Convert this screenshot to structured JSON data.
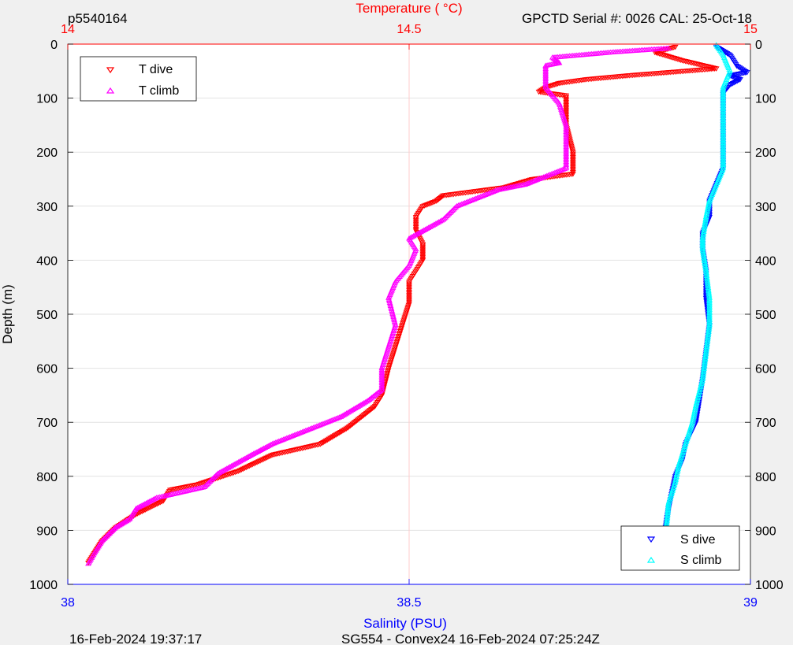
{
  "header": {
    "profile_id": "p5540164",
    "serial_info": "GPCTD Serial #: 0026 CAL: 25-Oct-18"
  },
  "footer": {
    "timestamp": "16-Feb-2024 19:37:17",
    "mission": "SG554 - Convex24 16-Feb-2024 07:25:24Z"
  },
  "colors": {
    "t_dive": "#ff0000",
    "t_climb": "#ff00ff",
    "s_dive": "#0000ff",
    "s_climb": "#00ffff",
    "top_axis": "#ff0000",
    "bottom_axis": "#0000ff",
    "background": "#f0f0f0",
    "plot_bg": "#ffffff"
  },
  "legends": [
    {
      "position": "top-left",
      "entries": [
        "T dive",
        "T climb"
      ]
    },
    {
      "position": "bottom-right",
      "entries": [
        "S dive",
        "S climb"
      ]
    }
  ],
  "chart_data": {
    "type": "scatter",
    "grid": true,
    "ylabel": "Depth (m)",
    "top_axis": {
      "label": "Temperature (    °C)",
      "range": [
        14,
        15
      ],
      "ticks": [
        "14",
        "14.5",
        "15"
      ]
    },
    "bottom_axis": {
      "label": "Salinity (PSU)",
      "range": [
        38,
        39
      ],
      "ticks": [
        "38",
        "38.5",
        "39"
      ]
    },
    "y_axis": {
      "range": [
        0,
        1000
      ],
      "reversed": true,
      "ticks": [
        "0",
        "100",
        "200",
        "300",
        "400",
        "500",
        "600",
        "700",
        "800",
        "900",
        "1000"
      ]
    },
    "series": [
      {
        "name": "T dive",
        "axis": "temperature",
        "marker": "triangle-down",
        "points": [
          [
            14.89,
            5
          ],
          [
            14.86,
            15
          ],
          [
            14.9,
            30
          ],
          [
            14.95,
            45
          ],
          [
            14.88,
            52
          ],
          [
            14.82,
            58
          ],
          [
            14.76,
            65
          ],
          [
            14.72,
            72
          ],
          [
            14.7,
            80
          ],
          [
            14.69,
            88
          ],
          [
            14.73,
            95
          ],
          [
            14.73,
            110
          ],
          [
            14.73,
            150
          ],
          [
            14.74,
            200
          ],
          [
            14.74,
            240
          ],
          [
            14.68,
            250
          ],
          [
            14.64,
            265
          ],
          [
            14.58,
            275
          ],
          [
            14.55,
            280
          ],
          [
            14.54,
            290
          ],
          [
            14.52,
            300
          ],
          [
            14.51,
            320
          ],
          [
            14.51,
            345
          ],
          [
            14.52,
            370
          ],
          [
            14.52,
            400
          ],
          [
            14.5,
            440
          ],
          [
            14.5,
            480
          ],
          [
            14.49,
            520
          ],
          [
            14.48,
            560
          ],
          [
            14.47,
            600
          ],
          [
            14.46,
            650
          ],
          [
            14.45,
            670
          ],
          [
            14.43,
            690
          ],
          [
            14.41,
            710
          ],
          [
            14.37,
            740
          ],
          [
            14.3,
            760
          ],
          [
            14.25,
            790
          ],
          [
            14.19,
            815
          ],
          [
            14.15,
            825
          ],
          [
            14.14,
            845
          ],
          [
            14.1,
            870
          ],
          [
            14.07,
            895
          ],
          [
            14.05,
            920
          ],
          [
            14.04,
            940
          ],
          [
            14.03,
            960
          ]
        ]
      },
      {
        "name": "T climb",
        "axis": "temperature",
        "marker": "triangle-up",
        "points": [
          [
            14.88,
            8
          ],
          [
            14.8,
            15
          ],
          [
            14.71,
            25
          ],
          [
            14.72,
            35
          ],
          [
            14.7,
            40
          ],
          [
            14.7,
            80
          ],
          [
            14.72,
            110
          ],
          [
            14.73,
            150
          ],
          [
            14.73,
            200
          ],
          [
            14.73,
            230
          ],
          [
            14.69,
            250
          ],
          [
            14.67,
            260
          ],
          [
            14.63,
            270
          ],
          [
            14.57,
            300
          ],
          [
            14.55,
            325
          ],
          [
            14.5,
            360
          ],
          [
            14.51,
            380
          ],
          [
            14.5,
            410
          ],
          [
            14.48,
            440
          ],
          [
            14.47,
            470
          ],
          [
            14.48,
            520
          ],
          [
            14.47,
            560
          ],
          [
            14.46,
            600
          ],
          [
            14.46,
            640
          ],
          [
            14.44,
            660
          ],
          [
            14.4,
            690
          ],
          [
            14.36,
            710
          ],
          [
            14.3,
            740
          ],
          [
            14.27,
            760
          ],
          [
            14.22,
            795
          ],
          [
            14.2,
            820
          ],
          [
            14.13,
            840
          ],
          [
            14.1,
            860
          ],
          [
            14.09,
            880
          ],
          [
            14.07,
            895
          ],
          [
            14.05,
            920
          ],
          [
            14.04,
            940
          ],
          [
            14.03,
            962
          ]
        ]
      },
      {
        "name": "S dive",
        "axis": "salinity",
        "marker": "triangle-down",
        "points": [
          [
            38.95,
            5
          ],
          [
            38.97,
            20
          ],
          [
            38.98,
            40
          ],
          [
            38.995,
            52
          ],
          [
            38.97,
            58
          ],
          [
            38.985,
            65
          ],
          [
            38.97,
            75
          ],
          [
            38.96,
            90
          ],
          [
            38.96,
            120
          ],
          [
            38.96,
            180
          ],
          [
            38.96,
            230
          ],
          [
            38.95,
            260
          ],
          [
            38.94,
            290
          ],
          [
            38.94,
            320
          ],
          [
            38.93,
            350
          ],
          [
            38.93,
            380
          ],
          [
            38.935,
            420
          ],
          [
            38.935,
            470
          ],
          [
            38.94,
            520
          ],
          [
            38.935,
            570
          ],
          [
            38.93,
            620
          ],
          [
            38.925,
            660
          ],
          [
            38.92,
            700
          ],
          [
            38.905,
            740
          ],
          [
            38.9,
            770
          ],
          [
            38.89,
            800
          ],
          [
            38.885,
            830
          ],
          [
            38.88,
            860
          ],
          [
            38.875,
            900
          ],
          [
            38.87,
            930
          ],
          [
            38.87,
            960
          ]
        ]
      },
      {
        "name": "S climb",
        "axis": "salinity",
        "marker": "triangle-up",
        "points": [
          [
            38.95,
            2
          ],
          [
            38.96,
            20
          ],
          [
            38.97,
            50
          ],
          [
            38.96,
            80
          ],
          [
            38.96,
            120
          ],
          [
            38.96,
            180
          ],
          [
            38.96,
            230
          ],
          [
            38.95,
            260
          ],
          [
            38.94,
            290
          ],
          [
            38.935,
            320
          ],
          [
            38.93,
            360
          ],
          [
            38.93,
            380
          ],
          [
            38.935,
            420
          ],
          [
            38.94,
            470
          ],
          [
            38.94,
            520
          ],
          [
            38.935,
            570
          ],
          [
            38.93,
            620
          ],
          [
            38.92,
            670
          ],
          [
            38.915,
            700
          ],
          [
            38.905,
            740
          ],
          [
            38.895,
            780
          ],
          [
            38.89,
            810
          ],
          [
            38.88,
            850
          ],
          [
            38.878,
            880
          ],
          [
            38.875,
            910
          ],
          [
            38.872,
            940
          ],
          [
            38.87,
            965
          ]
        ]
      }
    ]
  }
}
